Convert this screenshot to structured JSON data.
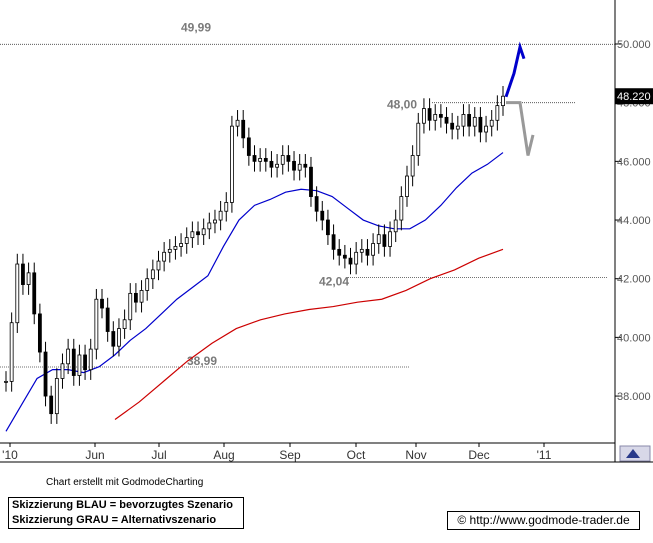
{
  "chart_data": {
    "type": "candlestick",
    "x_tick_labels": [
      "'10",
      "Jun",
      "Jul",
      "Aug",
      "Sep",
      "Oct",
      "Nov",
      "Dec",
      "'11"
    ],
    "y_ticks": [
      38,
      40,
      42,
      44,
      46,
      48,
      50
    ],
    "y_tick_labels": [
      "38.000",
      "40.000",
      "42.000",
      "44.000",
      "46.000",
      "48.000",
      "50.000"
    ],
    "ylim": [
      36.4,
      51.5
    ],
    "last_price": 48.22,
    "last_price_label": "48.220",
    "grid": false,
    "horizontal_levels": [
      {
        "value": 49.99,
        "label": "49,99"
      },
      {
        "value": 48.0,
        "label": "48,00"
      },
      {
        "value": 42.04,
        "label": "42,04"
      },
      {
        "value": 38.99,
        "label": "38,99"
      }
    ],
    "series": [
      {
        "kind": "ohlc",
        "color": "#000000",
        "values": [
          38.5,
          40.5,
          42.5,
          41.8,
          42.2,
          40.8,
          39.5,
          38.0,
          37.4,
          38.6,
          39.1,
          39.6,
          38.7,
          39.4,
          38.9,
          39.6,
          41.3,
          41.0,
          40.2,
          39.7,
          40.3,
          40.6,
          41.5,
          41.2,
          41.6,
          42.0,
          42.3,
          42.6,
          42.9,
          43.0,
          43.1,
          43.2,
          43.4,
          43.6,
          43.5,
          43.7,
          43.9,
          44.0,
          44.3,
          44.6,
          47.2,
          47.4,
          46.8,
          46.2,
          46.0,
          46.1,
          46.0,
          45.8,
          45.9,
          46.2,
          46.0,
          45.7,
          45.9,
          45.8,
          44.8,
          44.3,
          44.0,
          43.5,
          43.0,
          42.8,
          42.7,
          42.5,
          42.9,
          43.0,
          42.8,
          43.2,
          43.5,
          43.1,
          43.6,
          44.0,
          44.8,
          45.5,
          46.2,
          47.3,
          47.8,
          47.4,
          47.6,
          47.5,
          47.3,
          47.1,
          47.2,
          47.6,
          47.2,
          47.5,
          47.0,
          47.2,
          47.4,
          47.9,
          48.22
        ]
      },
      {
        "kind": "moving_average",
        "color": "#0000cc",
        "values": [
          36.8,
          37.7,
          38.6,
          38.9,
          38.9,
          38.8,
          39.0,
          39.4,
          39.9,
          40.3,
          40.8,
          41.3,
          41.7,
          42.1,
          43.1,
          44.0,
          44.5,
          44.7,
          44.95,
          45.05,
          45.0,
          44.8,
          44.4,
          44.0,
          43.8,
          43.7,
          43.7,
          44.0,
          44.5,
          45.1,
          45.6,
          45.9,
          46.3
        ]
      },
      {
        "kind": "moving_average",
        "color": "#cc0000",
        "values": [
          37.2,
          37.8,
          38.5,
          39.2,
          39.8,
          40.3,
          40.6,
          40.8,
          40.95,
          41.05,
          41.2,
          41.3,
          41.6,
          42.0,
          42.3,
          42.7,
          43.0
        ]
      }
    ],
    "scenarios": [
      {
        "color": "#0000cc",
        "points": [
          48.2,
          49.0,
          49.9,
          49.5
        ]
      },
      {
        "color": "#999999",
        "points": [
          48.0,
          48.0,
          46.2,
          46.9
        ]
      }
    ]
  },
  "footer": {
    "credit": "Chart erstellt mit GodmodeCharting",
    "legend_line1": "Skizzierung BLAU = bevorzugtes Szenario",
    "legend_line2": "Skizzierung GRAU = Alternativszenario",
    "url": "© http://www.godmode-trader.de"
  }
}
